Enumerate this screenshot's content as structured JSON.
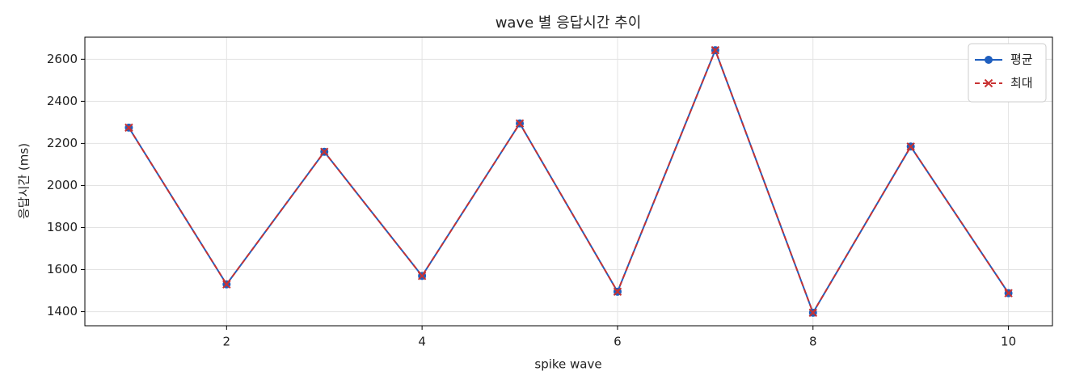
{
  "chart_data": {
    "type": "line",
    "title": "wave 별 응답시간 추이",
    "x_label": "spike wave",
    "y_label": "응답시간 (ms)",
    "x": [
      1,
      2,
      3,
      4,
      5,
      6,
      7,
      8,
      9,
      10
    ],
    "series": [
      {
        "name": "평균",
        "color": "#1f5fbf",
        "marker": "circle",
        "dash": "solid",
        "values": [
          2275,
          1530,
          2160,
          1570,
          2295,
          1495,
          2643,
          1395,
          2185,
          1488
        ]
      },
      {
        "name": "최대",
        "color": "#c83232",
        "marker": "x",
        "dash": "dashed",
        "values": [
          2275,
          1530,
          2160,
          1570,
          2295,
          1495,
          2643,
          1395,
          2185,
          1488
        ]
      }
    ],
    "xlim": [
      0.55,
      10.45
    ],
    "ylim": [
      1333,
      2705
    ],
    "xticks": [
      2,
      4,
      6,
      8,
      10
    ],
    "yticks": [
      1400,
      1600,
      1800,
      2000,
      2200,
      2400,
      2600
    ],
    "grid": true,
    "legend": "upper-right"
  }
}
